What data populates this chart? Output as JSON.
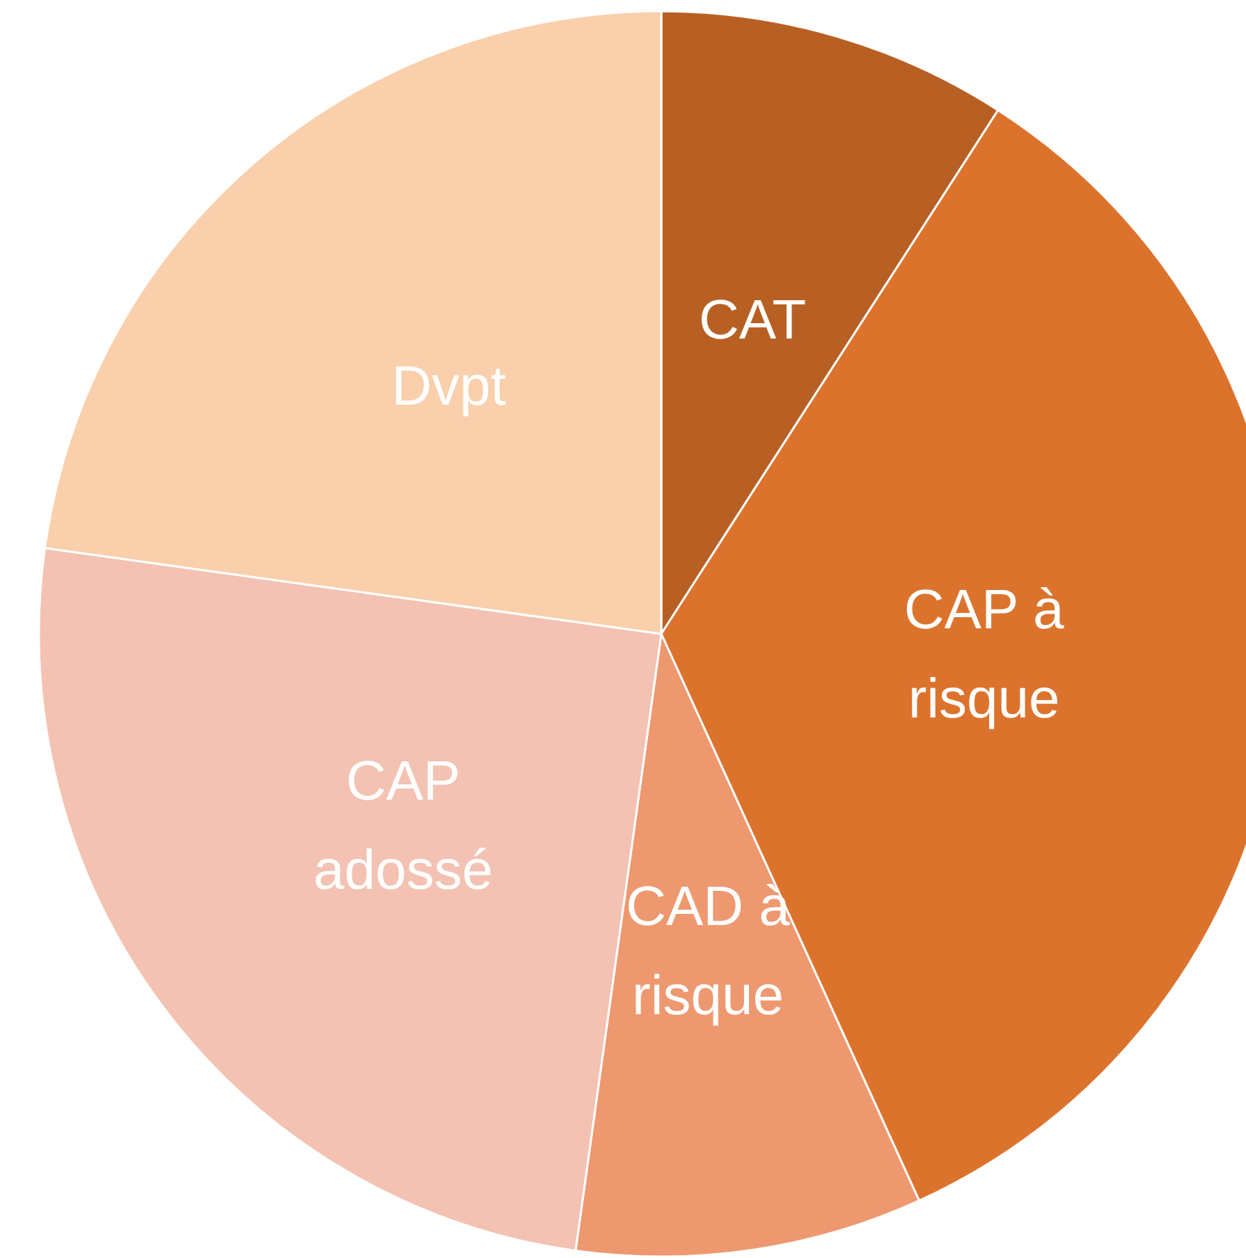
{
  "chart_data": {
    "type": "pie",
    "categories": [
      "CAT",
      "CAP à risque",
      "CAD à risque",
      "CAP adossé",
      "Dvpt"
    ],
    "values": [
      9.1,
      34.1,
      9.0,
      25.0,
      22.8
    ],
    "colors": [
      "#b86024",
      "#dc732d",
      "#ee9870",
      "#f3c2b2",
      "#facfab"
    ],
    "legend": false
  }
}
